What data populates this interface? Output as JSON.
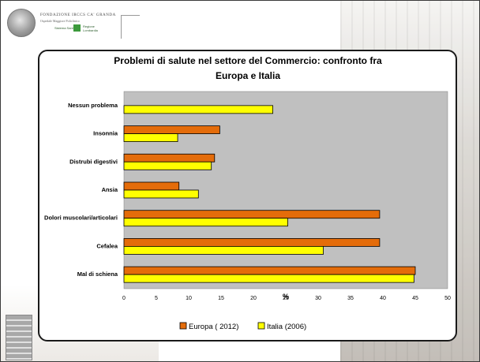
{
  "chart_data": {
    "type": "bar",
    "orientation": "horizontal",
    "title": "Problemi di salute nel settore del Commercio: confronto fra Europa e Italia",
    "title_lines": [
      "Problemi di salute nel settore del Commercio: confronto fra",
      "Europa e Italia"
    ],
    "xlabel": "%",
    "ylabel": "",
    "xlim": [
      0,
      50
    ],
    "xticks": [
      "0",
      "5",
      "10",
      "15",
      "20",
      "25",
      "30",
      "35",
      "40",
      "45",
      "50"
    ],
    "categories": [
      "Nessun problema",
      "Insonnia",
      "Distrubi digestivi",
      "Ansia",
      "Dolori muscolari/articolari",
      "Cefalea",
      "Mal di schiena"
    ],
    "series": [
      {
        "name": "Europa ( 2012)",
        "color": "#e46c0a",
        "values": [
          0,
          14.8,
          14,
          8.5,
          39.5,
          39.5,
          45
        ]
      },
      {
        "name": "Italia (2006)",
        "color": "#ffff00",
        "values": [
          23,
          8.3,
          13.5,
          11.5,
          25.3,
          30.8,
          44.8
        ]
      }
    ],
    "plot_background": "#c0c0c0",
    "grid": false,
    "legend_position": "bottom"
  }
}
